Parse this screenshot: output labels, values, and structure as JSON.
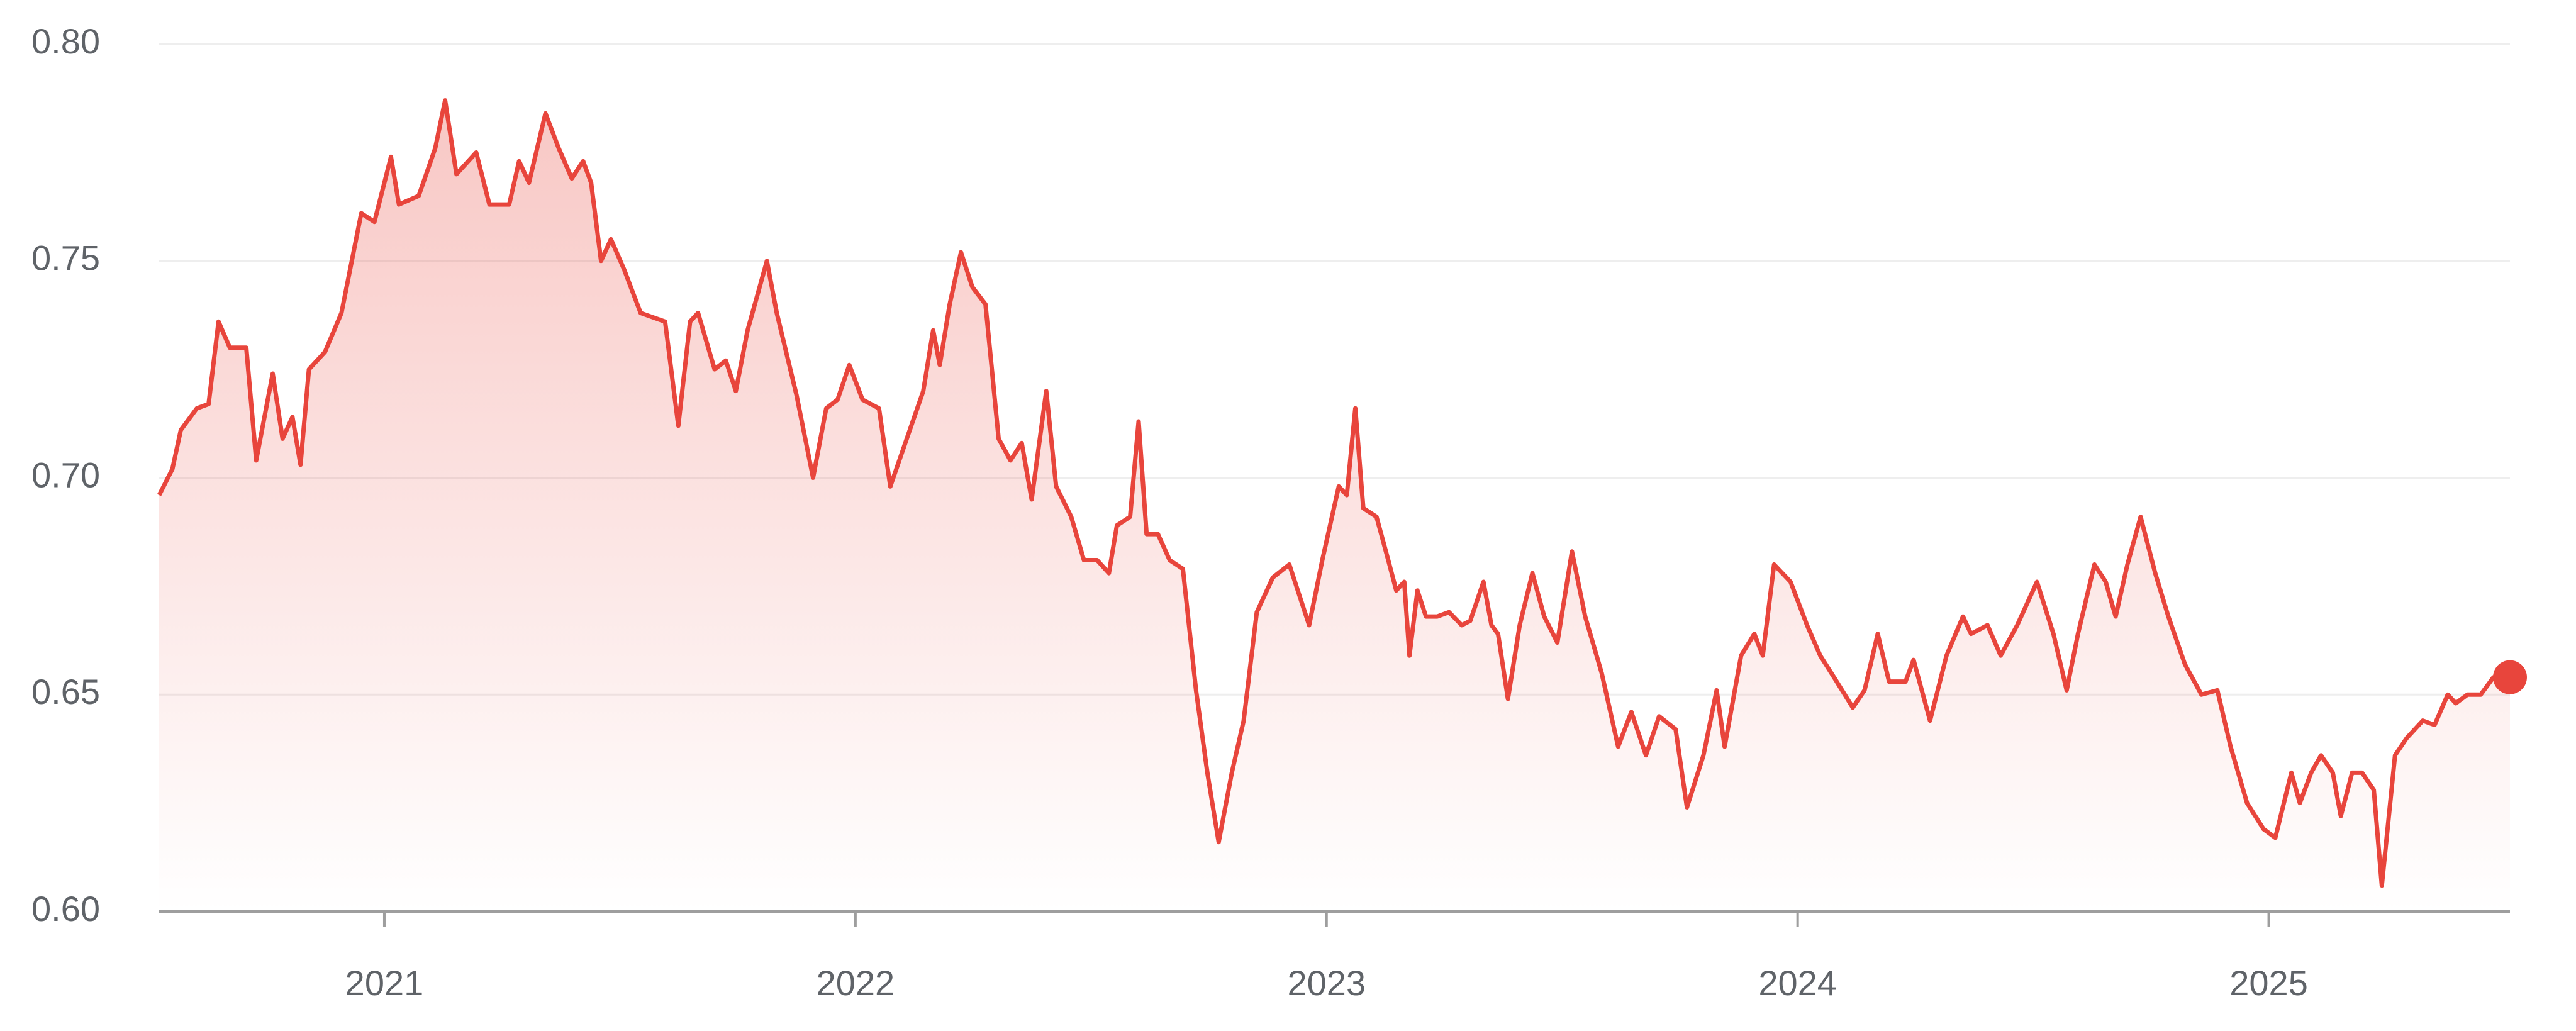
{
  "chart_data": {
    "type": "line",
    "x": [
      2020.522,
      2020.55,
      2020.568,
      2020.602,
      2020.627,
      2020.648,
      2020.672,
      2020.707,
      2020.728,
      2020.763,
      2020.784,
      2020.805,
      2020.822,
      2020.84,
      2020.874,
      2020.909,
      2020.951,
      2020.979,
      2021.014,
      2021.031,
      2021.073,
      2021.108,
      2021.129,
      2021.153,
      2021.195,
      2021.223,
      2021.265,
      2021.286,
      2021.307,
      2021.342,
      2021.37,
      2021.398,
      2021.422,
      2021.439,
      2021.46,
      2021.481,
      2021.509,
      2021.544,
      2021.596,
      2021.624,
      2021.649,
      2021.666,
      2021.701,
      2021.725,
      2021.746,
      2021.771,
      2021.812,
      2021.833,
      2021.875,
      2021.91,
      2021.938,
      2021.962,
      2021.987,
      2022.015,
      2022.05,
      2022.074,
      2022.109,
      2022.144,
      2022.165,
      2022.179,
      2022.2,
      2022.224,
      2022.248,
      2022.276,
      2022.304,
      2022.329,
      2022.353,
      2022.374,
      2022.405,
      2022.426,
      2022.458,
      2022.485,
      2022.513,
      2022.538,
      2022.555,
      2022.583,
      2022.601,
      2022.618,
      2022.642,
      2022.667,
      2022.695,
      2022.723,
      2022.747,
      2022.771,
      2022.799,
      2022.824,
      2022.852,
      2022.886,
      2022.921,
      2022.963,
      2022.991,
      2023.026,
      2023.043,
      2023.061,
      2023.078,
      2023.106,
      2023.131,
      2023.148,
      2023.165,
      2023.176,
      2023.193,
      2023.211,
      2023.235,
      2023.26,
      2023.287,
      2023.305,
      2023.333,
      2023.35,
      2023.364,
      2023.385,
      2023.41,
      2023.437,
      2023.462,
      2023.49,
      2023.521,
      2023.549,
      2023.584,
      2023.619,
      2023.647,
      2023.678,
      2023.706,
      2023.741,
      2023.765,
      2023.8,
      2023.828,
      2023.845,
      2023.88,
      2023.908,
      2023.926,
      2023.95,
      2023.985,
      2024.02,
      2024.048,
      2024.083,
      2024.117,
      2024.142,
      2024.17,
      2024.194,
      2024.229,
      2024.246,
      2024.281,
      2024.316,
      2024.351,
      2024.368,
      2024.403,
      2024.431,
      2024.466,
      2024.508,
      2024.543,
      2024.571,
      2024.595,
      2024.63,
      2024.654,
      2024.675,
      2024.7,
      2024.728,
      2024.759,
      2024.787,
      2024.822,
      2024.857,
      2024.891,
      2024.919,
      2024.954,
      2024.989,
      2025.014,
      2025.048,
      2025.066,
      2025.09,
      2025.111,
      2025.136,
      2025.153,
      2025.177,
      2025.198,
      2025.223,
      2025.24,
      2025.268,
      2025.293,
      2025.327,
      2025.352,
      2025.38,
      2025.397,
      2025.422,
      2025.45,
      2025.477,
      2025.512
    ],
    "series": [
      {
        "color": "#e8453c",
        "values": [
          0.696,
          0.702,
          0.711,
          0.716,
          0.717,
          0.736,
          0.73,
          0.73,
          0.704,
          0.724,
          0.709,
          0.714,
          0.703,
          0.725,
          0.729,
          0.738,
          0.761,
          0.759,
          0.774,
          0.763,
          0.765,
          0.776,
          0.787,
          0.77,
          0.775,
          0.763,
          0.763,
          0.773,
          0.768,
          0.784,
          0.776,
          0.769,
          0.773,
          0.768,
          0.75,
          0.755,
          0.748,
          0.738,
          0.736,
          0.712,
          0.736,
          0.738,
          0.725,
          0.727,
          0.72,
          0.734,
          0.75,
          0.738,
          0.719,
          0.7,
          0.716,
          0.718,
          0.726,
          0.718,
          0.716,
          0.698,
          0.709,
          0.72,
          0.734,
          0.726,
          0.74,
          0.752,
          0.744,
          0.74,
          0.709,
          0.704,
          0.708,
          0.695,
          0.72,
          0.698,
          0.691,
          0.681,
          0.681,
          0.678,
          0.689,
          0.691,
          0.713,
          0.687,
          0.687,
          0.681,
          0.679,
          0.651,
          0.632,
          0.616,
          0.632,
          0.644,
          0.669,
          0.677,
          0.68,
          0.666,
          0.681,
          0.698,
          0.696,
          0.716,
          0.693,
          0.691,
          0.681,
          0.674,
          0.676,
          0.659,
          0.674,
          0.668,
          0.668,
          0.669,
          0.666,
          0.667,
          0.676,
          0.666,
          0.664,
          0.649,
          0.666,
          0.678,
          0.668,
          0.662,
          0.683,
          0.668,
          0.655,
          0.638,
          0.646,
          0.636,
          0.645,
          0.642,
          0.624,
          0.636,
          0.651,
          0.638,
          0.659,
          0.664,
          0.659,
          0.68,
          0.676,
          0.666,
          0.659,
          0.653,
          0.647,
          0.651,
          0.664,
          0.653,
          0.653,
          0.658,
          0.644,
          0.659,
          0.668,
          0.664,
          0.666,
          0.659,
          0.666,
          0.676,
          0.664,
          0.651,
          0.664,
          0.68,
          0.676,
          0.668,
          0.68,
          0.691,
          0.678,
          0.668,
          0.657,
          0.65,
          0.651,
          0.638,
          0.625,
          0.619,
          0.617,
          0.632,
          0.625,
          0.632,
          0.636,
          0.632,
          0.622,
          0.632,
          0.632,
          0.628,
          0.606,
          0.636,
          0.64,
          0.644,
          0.643,
          0.65,
          0.648,
          0.65,
          0.65,
          0.654,
          0.654
        ]
      }
    ],
    "xlim": [
      2020.522,
      2025.512
    ],
    "xticks": [
      2021,
      2022,
      2023,
      2024,
      2025
    ],
    "ylim": [
      0.6,
      0.8
    ],
    "yticks": [
      {
        "value": 0.6,
        "label": "0.60"
      },
      0.65,
      {
        "value": 0.7,
        "label": "0.70"
      },
      0.75,
      {
        "value": 0.8,
        "label": "0.80"
      }
    ],
    "grid": true
  }
}
